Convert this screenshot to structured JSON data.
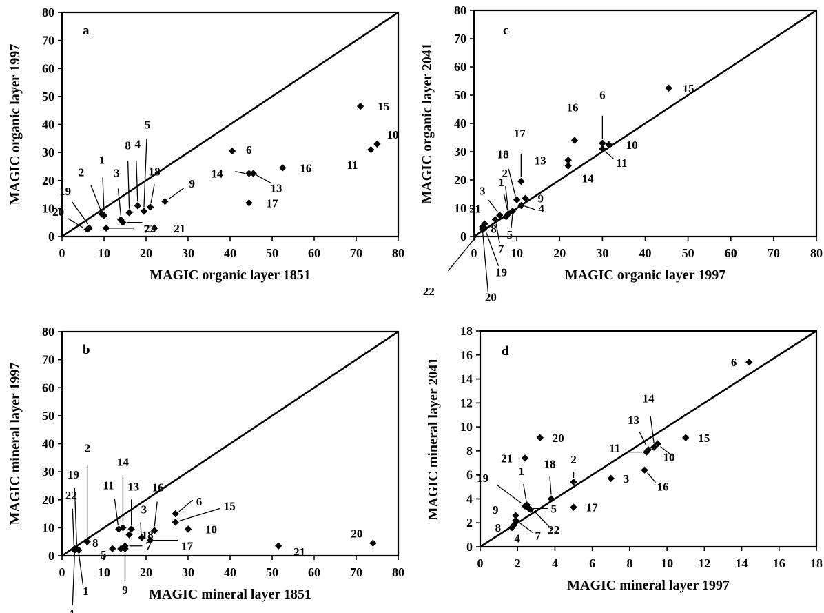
{
  "chart_data": [
    {
      "id": "a",
      "type": "scatter",
      "panel_letter": "a",
      "xlabel": "MAGIC organic layer 1851",
      "ylabel": "MAGIC organic layer 1997",
      "xlim": [
        0,
        80
      ],
      "ylim": [
        0,
        80
      ],
      "xticks": [
        0,
        10,
        20,
        30,
        40,
        50,
        60,
        70,
        80
      ],
      "yticks": [
        0,
        10,
        20,
        30,
        40,
        50,
        60,
        70,
        80
      ],
      "one_to_one_line": true,
      "marker": "diamond",
      "points": [
        {
          "label": "1",
          "x": 10,
          "y": 7.5
        },
        {
          "label": "2",
          "x": 9.5,
          "y": 8
        },
        {
          "label": "3",
          "x": 14,
          "y": 6
        },
        {
          "label": "4",
          "x": 18,
          "y": 11
        },
        {
          "label": "5",
          "x": 19.5,
          "y": 9
        },
        {
          "label": "6",
          "x": 40.5,
          "y": 30.5
        },
        {
          "label": "7",
          "x": 14.5,
          "y": 5
        },
        {
          "label": "8",
          "x": 16,
          "y": 8.5
        },
        {
          "label": "9",
          "x": 24.5,
          "y": 12.5
        },
        {
          "label": "10",
          "x": 75,
          "y": 33
        },
        {
          "label": "11",
          "x": 73.5,
          "y": 31
        },
        {
          "label": "13",
          "x": 45.5,
          "y": 22.5
        },
        {
          "label": "14",
          "x": 44.5,
          "y": 22.5
        },
        {
          "label": "15",
          "x": 71,
          "y": 46.5
        },
        {
          "label": "16",
          "x": 52.5,
          "y": 24.5
        },
        {
          "label": "17",
          "x": 44.5,
          "y": 12
        },
        {
          "label": "18",
          "x": 21,
          "y": 10.5
        },
        {
          "label": "19",
          "x": 6.5,
          "y": 3
        },
        {
          "label": "20",
          "x": 6,
          "y": 2.5
        },
        {
          "label": "21",
          "x": 22,
          "y": 3
        },
        {
          "label": "22",
          "x": 10.5,
          "y": 3
        }
      ]
    },
    {
      "id": "c",
      "type": "scatter",
      "panel_letter": "c",
      "xlabel": "MAGIC organic layer 1997",
      "ylabel": "MAGIC organic layer 2041",
      "xlim": [
        0,
        80
      ],
      "ylim": [
        0,
        80
      ],
      "xticks": [
        0,
        10,
        20,
        30,
        40,
        50,
        60,
        70,
        80
      ],
      "yticks": [
        0,
        10,
        20,
        30,
        40,
        50,
        60,
        70,
        80
      ],
      "one_to_one_line": true,
      "marker": "diamond",
      "points": [
        {
          "label": "1",
          "x": 8,
          "y": 8
        },
        {
          "label": "2",
          "x": 8,
          "y": 8
        },
        {
          "label": "3",
          "x": 6,
          "y": 7.5
        },
        {
          "label": "4",
          "x": 11,
          "y": 11
        },
        {
          "label": "5",
          "x": 9,
          "y": 9
        },
        {
          "label": "6",
          "x": 30,
          "y": 33
        },
        {
          "label": "7",
          "x": 5,
          "y": 6
        },
        {
          "label": "8",
          "x": 7.5,
          "y": 7
        },
        {
          "label": "9",
          "x": 12,
          "y": 13.5
        },
        {
          "label": "10",
          "x": 31.5,
          "y": 32.5
        },
        {
          "label": "11",
          "x": 30,
          "y": 31
        },
        {
          "label": "13",
          "x": 22,
          "y": 27
        },
        {
          "label": "14",
          "x": 22,
          "y": 25
        },
        {
          "label": "15",
          "x": 45.5,
          "y": 52.5
        },
        {
          "label": "16",
          "x": 23.5,
          "y": 34
        },
        {
          "label": "17",
          "x": 11,
          "y": 19.5
        },
        {
          "label": "18",
          "x": 10,
          "y": 13
        },
        {
          "label": "19",
          "x": 2.5,
          "y": 3
        },
        {
          "label": "20",
          "x": 2,
          "y": 3.5
        },
        {
          "label": "21",
          "x": 2.5,
          "y": 4.5
        },
        {
          "label": "22",
          "x": 2,
          "y": 2.5
        }
      ]
    },
    {
      "id": "b",
      "type": "scatter",
      "panel_letter": "b",
      "xlabel": "MAGIC mineral layer 1851",
      "ylabel": "MAGIC mineral layer 1997",
      "xlim": [
        0,
        80
      ],
      "ylim": [
        0,
        80
      ],
      "xticks": [
        0,
        10,
        20,
        30,
        40,
        50,
        60,
        70,
        80
      ],
      "yticks": [
        0,
        10,
        20,
        30,
        40,
        50,
        60,
        70,
        80
      ],
      "one_to_one_line": true,
      "marker": "diamond",
      "points": [
        {
          "label": "1",
          "x": 4,
          "y": 2
        },
        {
          "label": "2",
          "x": 6,
          "y": 5
        },
        {
          "label": "3",
          "x": 19,
          "y": 6.5
        },
        {
          "label": "4",
          "x": 3,
          "y": 2
        },
        {
          "label": "5",
          "x": 14,
          "y": 2.5
        },
        {
          "label": "6",
          "x": 27,
          "y": 15
        },
        {
          "label": "7",
          "x": 15,
          "y": 3.5
        },
        {
          "label": "8",
          "x": 12,
          "y": 2.5
        },
        {
          "label": "9",
          "x": 15,
          "y": 2.5
        },
        {
          "label": "10",
          "x": 30,
          "y": 9.5
        },
        {
          "label": "11",
          "x": 13.5,
          "y": 9.5
        },
        {
          "label": "13",
          "x": 16.5,
          "y": 9.5
        },
        {
          "label": "14",
          "x": 14.5,
          "y": 10
        },
        {
          "label": "15",
          "x": 27,
          "y": 12
        },
        {
          "label": "16",
          "x": 22,
          "y": 9
        },
        {
          "label": "17",
          "x": 21,
          "y": 5.5
        },
        {
          "label": "18",
          "x": 16,
          "y": 7.5
        },
        {
          "label": "19",
          "x": 3.5,
          "y": 2.5
        },
        {
          "label": "20",
          "x": 74,
          "y": 4.5
        },
        {
          "label": "21",
          "x": 51.5,
          "y": 3.5
        },
        {
          "label": "22",
          "x": 3,
          "y": 2.5
        }
      ]
    },
    {
      "id": "d",
      "type": "scatter",
      "panel_letter": "d",
      "xlabel": "MAGIC mineral layer 1997",
      "ylabel": "MAGIC mineral layer 2041",
      "xlim": [
        0,
        18
      ],
      "ylim": [
        0,
        18
      ],
      "xticks": [
        0,
        2,
        4,
        6,
        8,
        10,
        12,
        14,
        16,
        18
      ],
      "yticks": [
        0,
        2,
        4,
        6,
        8,
        10,
        12,
        14,
        16,
        18
      ],
      "one_to_one_line": true,
      "marker": "diamond",
      "points": [
        {
          "label": "1",
          "x": 2.5,
          "y": 3.5
        },
        {
          "label": "2",
          "x": 5,
          "y": 5.4
        },
        {
          "label": "3",
          "x": 7,
          "y": 5.7
        },
        {
          "label": "4",
          "x": 1.8,
          "y": 1.8
        },
        {
          "label": "5",
          "x": 2.6,
          "y": 3.2
        },
        {
          "label": "6",
          "x": 14.4,
          "y": 15.4
        },
        {
          "label": "7",
          "x": 1.9,
          "y": 2.2
        },
        {
          "label": "8",
          "x": 1.7,
          "y": 1.6
        },
        {
          "label": "9",
          "x": 1.9,
          "y": 2.6
        },
        {
          "label": "10",
          "x": 9.5,
          "y": 8.6
        },
        {
          "label": "11",
          "x": 8.9,
          "y": 7.9
        },
        {
          "label": "13",
          "x": 9,
          "y": 8.1
        },
        {
          "label": "14",
          "x": 9.3,
          "y": 8.3
        },
        {
          "label": "15",
          "x": 11,
          "y": 9.1
        },
        {
          "label": "16",
          "x": 8.8,
          "y": 6.4
        },
        {
          "label": "17",
          "x": 5,
          "y": 3.3
        },
        {
          "label": "18",
          "x": 3.8,
          "y": 4
        },
        {
          "label": "19",
          "x": 2.4,
          "y": 3.4
        },
        {
          "label": "20",
          "x": 3.2,
          "y": 9.1
        },
        {
          "label": "21",
          "x": 2.4,
          "y": 7.4
        },
        {
          "label": "22",
          "x": 2.7,
          "y": 3.1
        }
      ]
    }
  ]
}
